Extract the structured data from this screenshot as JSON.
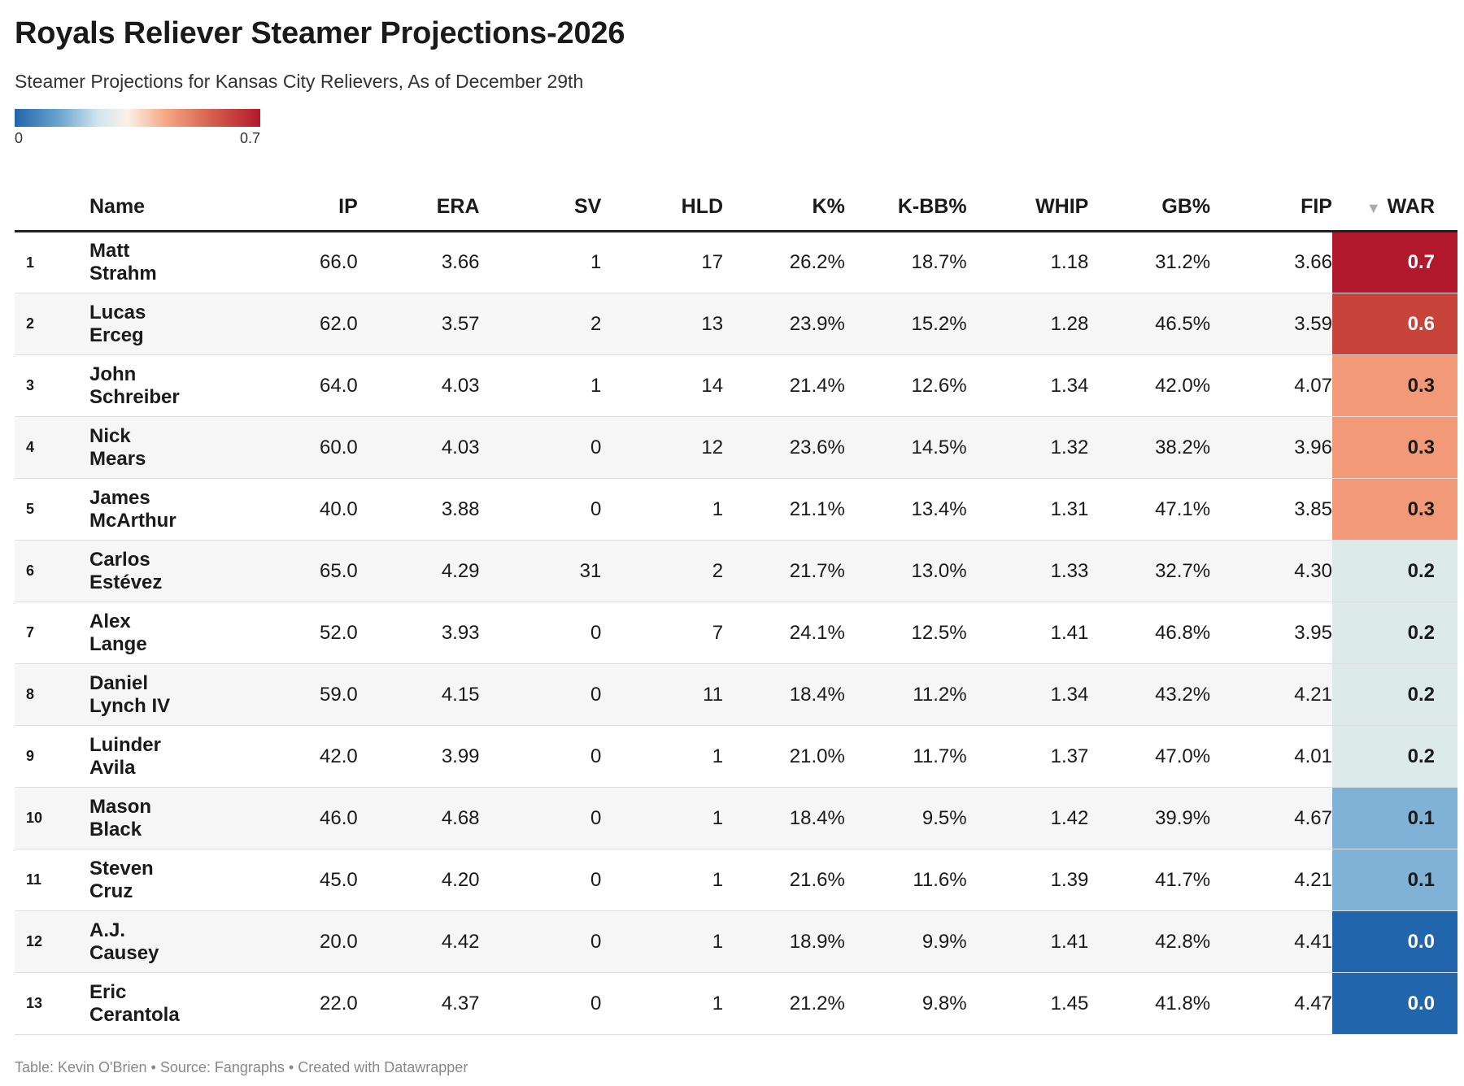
{
  "header": {
    "title": "Royals Reliever Steamer Projections-2026",
    "subtitle": "Steamer Projections for Kansas City Relievers, As of December 29th"
  },
  "legend": {
    "min_label": "0",
    "max_label": "0.7",
    "min": 0,
    "max": 0.7
  },
  "footer": "Table: Kevin O'Brien • Source: Fangraphs • Created with Datawrapper",
  "chart_data": {
    "type": "table",
    "title": "Royals Reliever Steamer Projections-2026",
    "subtitle": "Steamer Projections for Kansas City Relievers, As of December 29th",
    "sorted_by": "WAR",
    "sort_arrow": "▼",
    "columns": [
      "Name",
      "IP",
      "ERA",
      "SV",
      "HLD",
      "K%",
      "K-BB%",
      "WHIP",
      "GB%",
      "FIP",
      "WAR"
    ],
    "rows": [
      {
        "rank": "1",
        "first": "Matt",
        "last": "Strahm",
        "ip": "66.0",
        "era": "3.66",
        "sv": "1",
        "hld": "17",
        "k": "26.2%",
        "kbb": "18.7%",
        "whip": "1.18",
        "gb": "31.2%",
        "fip": "3.66",
        "war": "0.7"
      },
      {
        "rank": "2",
        "first": "Lucas",
        "last": "Erceg",
        "ip": "62.0",
        "era": "3.57",
        "sv": "2",
        "hld": "13",
        "k": "23.9%",
        "kbb": "15.2%",
        "whip": "1.28",
        "gb": "46.5%",
        "fip": "3.59",
        "war": "0.6"
      },
      {
        "rank": "3",
        "first": "John",
        "last": "Schreiber",
        "ip": "64.0",
        "era": "4.03",
        "sv": "1",
        "hld": "14",
        "k": "21.4%",
        "kbb": "12.6%",
        "whip": "1.34",
        "gb": "42.0%",
        "fip": "4.07",
        "war": "0.3"
      },
      {
        "rank": "4",
        "first": "Nick",
        "last": "Mears",
        "ip": "60.0",
        "era": "4.03",
        "sv": "0",
        "hld": "12",
        "k": "23.6%",
        "kbb": "14.5%",
        "whip": "1.32",
        "gb": "38.2%",
        "fip": "3.96",
        "war": "0.3"
      },
      {
        "rank": "5",
        "first": "James",
        "last": "McArthur",
        "ip": "40.0",
        "era": "3.88",
        "sv": "0",
        "hld": "1",
        "k": "21.1%",
        "kbb": "13.4%",
        "whip": "1.31",
        "gb": "47.1%",
        "fip": "3.85",
        "war": "0.3"
      },
      {
        "rank": "6",
        "first": "Carlos",
        "last": "Estévez",
        "ip": "65.0",
        "era": "4.29",
        "sv": "31",
        "hld": "2",
        "k": "21.7%",
        "kbb": "13.0%",
        "whip": "1.33",
        "gb": "32.7%",
        "fip": "4.30",
        "war": "0.2"
      },
      {
        "rank": "7",
        "first": "Alex",
        "last": "Lange",
        "ip": "52.0",
        "era": "3.93",
        "sv": "0",
        "hld": "7",
        "k": "24.1%",
        "kbb": "12.5%",
        "whip": "1.41",
        "gb": "46.8%",
        "fip": "3.95",
        "war": "0.2"
      },
      {
        "rank": "8",
        "first": "Daniel",
        "last": "Lynch IV",
        "ip": "59.0",
        "era": "4.15",
        "sv": "0",
        "hld": "11",
        "k": "18.4%",
        "kbb": "11.2%",
        "whip": "1.34",
        "gb": "43.2%",
        "fip": "4.21",
        "war": "0.2"
      },
      {
        "rank": "9",
        "first": "Luinder",
        "last": "Avila",
        "ip": "42.0",
        "era": "3.99",
        "sv": "0",
        "hld": "1",
        "k": "21.0%",
        "kbb": "11.7%",
        "whip": "1.37",
        "gb": "47.0%",
        "fip": "4.01",
        "war": "0.2"
      },
      {
        "rank": "10",
        "first": "Mason",
        "last": "Black",
        "ip": "46.0",
        "era": "4.68",
        "sv": "0",
        "hld": "1",
        "k": "18.4%",
        "kbb": "9.5%",
        "whip": "1.42",
        "gb": "39.9%",
        "fip": "4.67",
        "war": "0.1"
      },
      {
        "rank": "11",
        "first": "Steven",
        "last": "Cruz",
        "ip": "45.0",
        "era": "4.20",
        "sv": "0",
        "hld": "1",
        "k": "21.6%",
        "kbb": "11.6%",
        "whip": "1.39",
        "gb": "41.7%",
        "fip": "4.21",
        "war": "0.1"
      },
      {
        "rank": "12",
        "first": "A.J.",
        "last": "Causey",
        "ip": "20.0",
        "era": "4.42",
        "sv": "0",
        "hld": "1",
        "k": "18.9%",
        "kbb": "9.9%",
        "whip": "1.41",
        "gb": "42.8%",
        "fip": "4.41",
        "war": "0.0"
      },
      {
        "rank": "13",
        "first": "Eric",
        "last": "Cerantola",
        "ip": "22.0",
        "era": "4.37",
        "sv": "0",
        "hld": "1",
        "k": "21.2%",
        "kbb": "9.8%",
        "whip": "1.45",
        "gb": "41.8%",
        "fip": "4.47",
        "war": "0.0"
      }
    ],
    "war_colors": {
      "0.7": "#b2182b",
      "0.6": "#c84339",
      "0.3": "#f29a77",
      "0.2": "#ddeaea",
      "0.1": "#7fb2d6",
      "0.0": "#2166ac"
    },
    "war_text_colors": {
      "0.7": "#ffffff",
      "0.6": "#ffffff",
      "0.3": "#1a1a1a",
      "0.2": "#1a1a1a",
      "0.1": "#1a1a1a",
      "0.0": "#ffffff"
    }
  }
}
